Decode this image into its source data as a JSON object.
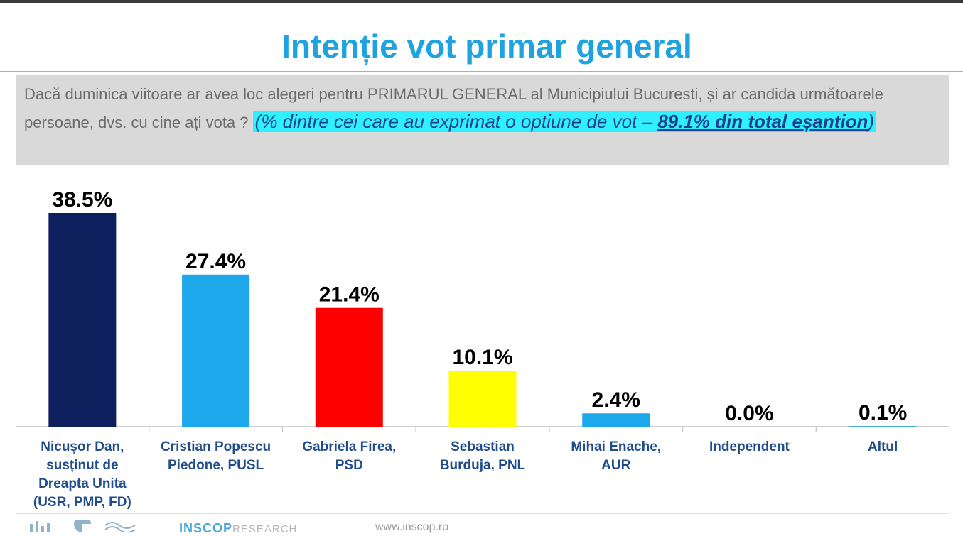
{
  "title": "Intenție vot primar general",
  "question": {
    "text": "Dacă duminica viitoare ar avea loc alegeri pentru PRIMARUL GENERAL al Municipiului Bucuresti, și ar candida următoarele persoane, dvs. cu cine ați vota ?",
    "note_prefix": "(% dintre cei care au exprimat o optiune de vot – ",
    "note_emph": "89.1% din total eșantion",
    "note_suffix": ")"
  },
  "footer": {
    "brand": "INSCOP",
    "brand_suffix": "RESEARCH",
    "site": "www.inscop.ro"
  },
  "chart_data": {
    "type": "bar",
    "title": "Intenție vot primar general",
    "categories": [
      "Nicușor Dan, susținut de Dreapta Unita (USR, PMP, FD)",
      "Cristian Popescu Piedone, PUSL",
      "Gabriela Firea, PSD",
      "Sebastian Burduja, PNL",
      "Mihai Enache, AUR",
      "Independent",
      "Altul"
    ],
    "category_lines": [
      [
        "Nicușor Dan,",
        "susținut de",
        "Dreapta Unita",
        "(USR, PMP, FD)"
      ],
      [
        "Cristian Popescu",
        "Piedone, PUSL"
      ],
      [
        "Gabriela Firea,",
        "PSD"
      ],
      [
        "Sebastian",
        "Burduja, PNL"
      ],
      [
        "Mihai Enache,",
        "AUR"
      ],
      [
        "Independent"
      ],
      [
        "Altul"
      ]
    ],
    "values": [
      38.5,
      27.4,
      21.4,
      10.1,
      2.4,
      0.0,
      0.1
    ],
    "value_labels": [
      "38.5%",
      "27.4%",
      "21.4%",
      "10.1%",
      "2.4%",
      "0.0%",
      "0.1%"
    ],
    "colors": [
      "#0d1f5c",
      "#1ea8ec",
      "#ff0000",
      "#ffff00",
      "#1ea8ec",
      "#1ea8ec",
      "#1ea8ec"
    ],
    "ylim": [
      0,
      38.5
    ],
    "grid": false,
    "legend": "none"
  }
}
